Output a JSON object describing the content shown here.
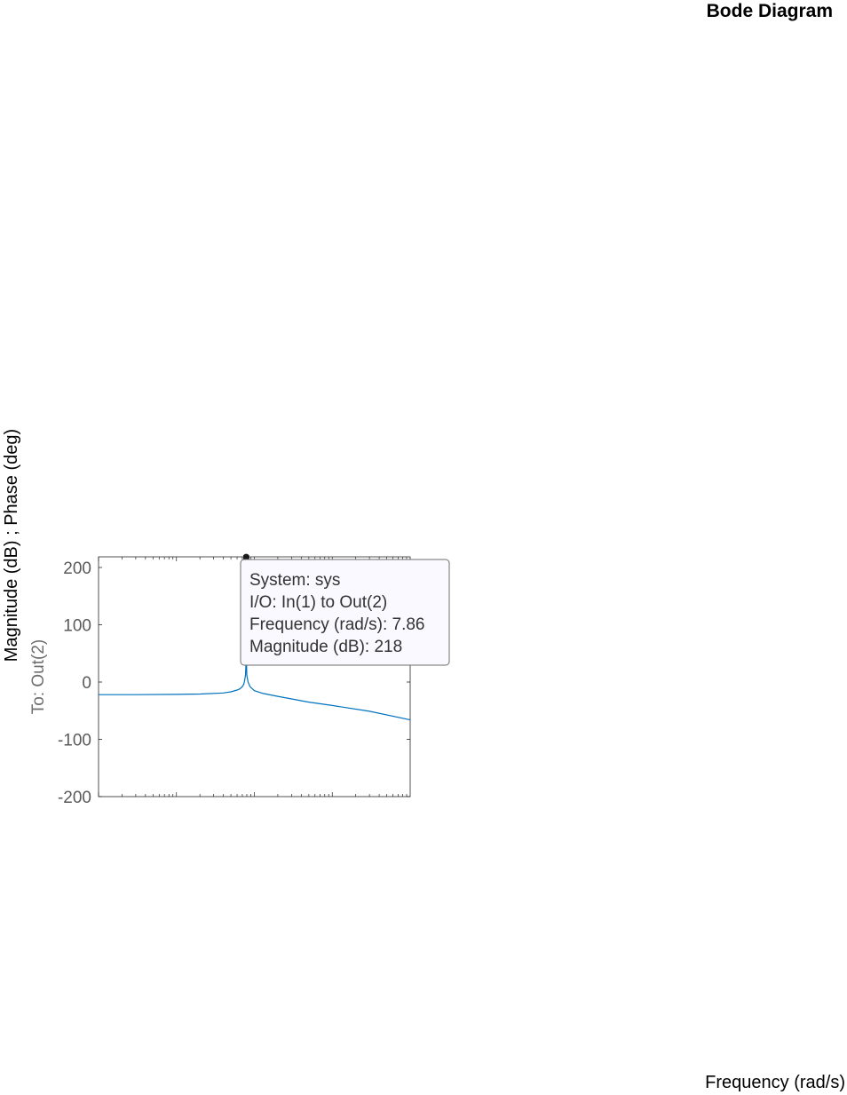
{
  "chart_data": {
    "type": "line",
    "title": "Bode Diagram",
    "xlabel": "Frequency  (rad/s)",
    "ylabel": "Magnitude (dB) ; Phase (deg)",
    "io_label": "To: Out(2)",
    "x_scale": "log",
    "xlim": [
      0.1,
      1000
    ],
    "ylim": [
      -200,
      220
    ],
    "yticks": [
      200,
      100,
      0,
      -100,
      -200
    ],
    "grid": false,
    "series": [
      {
        "color": "#0072bd",
        "x": [
          0.1,
          0.3,
          1,
          2,
          4,
          5,
          6,
          6.5,
          7,
          7.3,
          7.5,
          7.7,
          7.8,
          7.86,
          7.92,
          8.0,
          8.3,
          8.8,
          10,
          13,
          20,
          50,
          100,
          300,
          1000
        ],
        "y": [
          -22,
          -22,
          -21.5,
          -21,
          -19,
          -17,
          -14,
          -12,
          -8,
          -4,
          2,
          12,
          30,
          218,
          35,
          12,
          0,
          -8,
          -15,
          -20,
          -25,
          -35,
          -41,
          -51,
          -66
        ]
      }
    ],
    "datatip": {
      "x": 7.86,
      "y": 218,
      "lines": [
        "System: sys",
        "I/O: In(1) to Out(2)",
        "Frequency (rad/s): 7.86",
        "Magnitude (dB): 218"
      ]
    }
  }
}
